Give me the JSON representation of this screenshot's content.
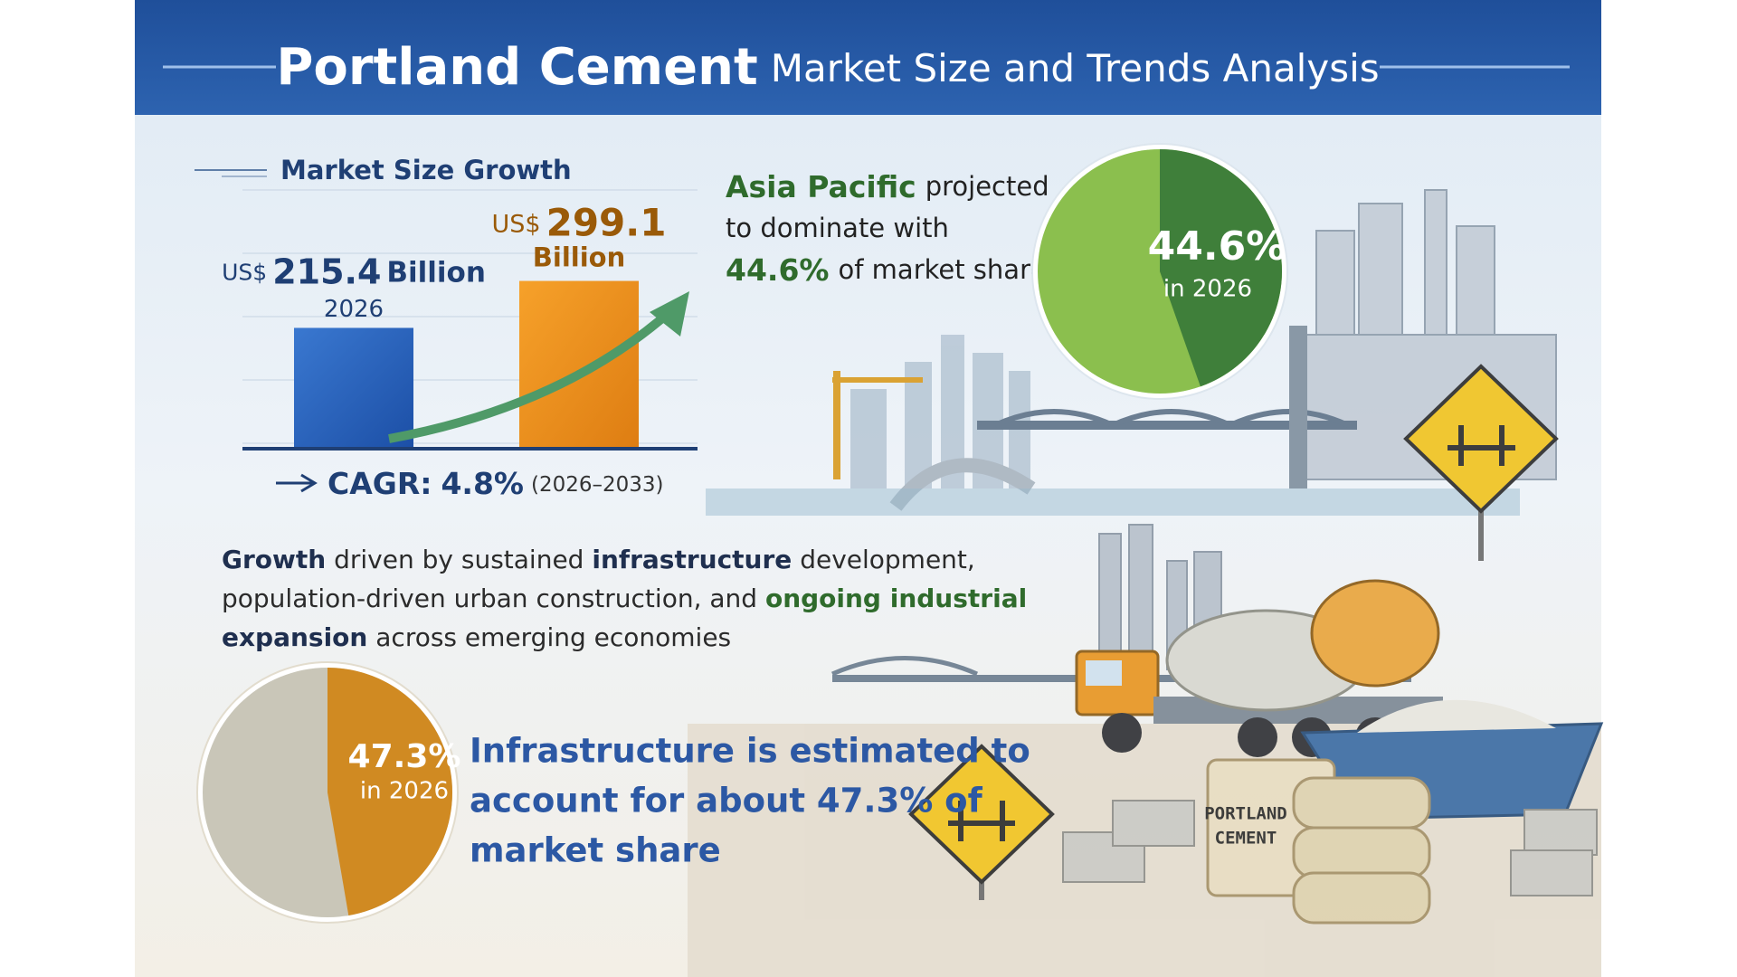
{
  "header": {
    "title_bold": "Portland Cement",
    "title_rest": "Market Size and Trends Analysis"
  },
  "market_size": {
    "heading": "Market Size Growth",
    "bars": [
      {
        "prefix": "US$",
        "value": 215.4,
        "unit": "Billion",
        "year": "2026"
      },
      {
        "prefix": "US$",
        "value": 299.1,
        "unit": "Billion"
      }
    ],
    "cagr": {
      "label": "CAGR:",
      "value_label": "4.8%",
      "period": "(2026–2033)"
    }
  },
  "region": {
    "highlight": "Asia Pacific",
    "text_1": "projected",
    "text_2": "to dominate with",
    "value": 44.6,
    "value_label": "44.6%",
    "text_3": "of market share",
    "year_label": "in 2026"
  },
  "drivers": {
    "lines": [
      [
        {
          "text": "Growth",
          "bold": true
        },
        {
          "text": " driven by sustained ",
          "bold": false
        },
        {
          "text": "infrastructure",
          "bold": true
        },
        {
          "text": " development,",
          "bold": false
        }
      ],
      [
        {
          "text": "population-driven urban construction, and ",
          "bold": false
        },
        {
          "text": "ongoing industrial",
          "bold": true
        }
      ],
      [
        {
          "text": "expansion",
          "bold": true
        },
        {
          "text": " across emerging economies",
          "bold": false
        }
      ]
    ]
  },
  "segment": {
    "value": 47.3,
    "value_label": "47.3%",
    "year_label": "in 2026",
    "lines": [
      "Infrastructure is estimated to",
      "account for about 47.3% of",
      "market share"
    ]
  },
  "illustration": {
    "bag_label": [
      "PORTLAND",
      "CEMENT"
    ]
  }
}
